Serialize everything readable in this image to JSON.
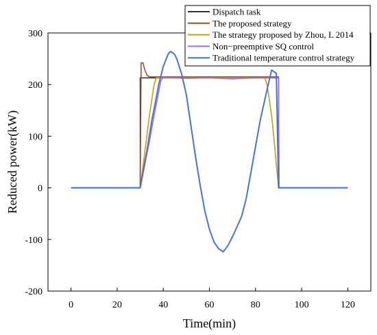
{
  "chart_data": {
    "type": "line",
    "title": "",
    "xlabel": "Time(min)",
    "ylabel": "Reduced power(kW)",
    "xlim": [
      -10,
      130
    ],
    "ylim": [
      -200,
      300
    ],
    "xticks": [
      0,
      20,
      40,
      60,
      80,
      100,
      120
    ],
    "yticks": [
      -200,
      -100,
      0,
      100,
      200,
      300
    ],
    "grid": false,
    "legend_position": "top-right",
    "series": [
      {
        "name": "Dispatch task",
        "color": "#333333",
        "x": [
          0,
          30,
          30,
          90,
          90,
          120
        ],
        "y": [
          0,
          0,
          213,
          213,
          0,
          0
        ]
      },
      {
        "name": "The proposed strategy",
        "color": "#a0522d",
        "x": [
          0,
          30,
          30.4,
          31.2,
          32,
          33,
          34,
          90,
          90.2,
          120
        ],
        "y": [
          0,
          0,
          242,
          242,
          228,
          218,
          215,
          215,
          0,
          0
        ]
      },
      {
        "name": "The strategy proposed by Zhou, L 2014",
        "color": "#c8a000",
        "x": [
          0,
          30,
          32,
          34,
          36,
          37,
          38,
          84,
          85,
          86,
          87,
          88,
          89,
          90,
          120
        ],
        "y": [
          0,
          0,
          70,
          140,
          200,
          213,
          213,
          213,
          200,
          170,
          140,
          95,
          45,
          0,
          0
        ]
      },
      {
        "name": "Non−preemptive SQ control",
        "color": "#a070e0",
        "x": [
          0,
          30,
          32,
          34,
          36,
          38,
          39,
          40,
          50,
          60,
          70,
          80,
          88,
          90,
          90.2,
          120
        ],
        "y": [
          0,
          0,
          45,
          90,
          140,
          185,
          208,
          214,
          212,
          213,
          211,
          213,
          213,
          213,
          0,
          0
        ]
      },
      {
        "name": "Traditional temperature control strategy",
        "color": "#4472e0",
        "x": [
          0,
          30,
          31,
          33,
          35,
          37,
          38,
          40,
          42,
          43,
          44,
          45,
          46,
          48,
          50,
          52,
          54,
          56,
          58,
          60,
          62,
          64,
          66,
          68,
          70,
          72,
          74,
          76,
          78,
          80,
          82,
          84,
          86,
          87,
          88,
          89,
          90,
          120
        ],
        "y": [
          0,
          0,
          25,
          75,
          130,
          175,
          200,
          235,
          258,
          264,
          262,
          258,
          248,
          220,
          180,
          120,
          60,
          5,
          -45,
          -80,
          -105,
          -118,
          -124,
          -112,
          -95,
          -75,
          -55,
          -20,
          30,
          80,
          130,
          170,
          210,
          228,
          225,
          222,
          0,
          0
        ]
      }
    ]
  }
}
